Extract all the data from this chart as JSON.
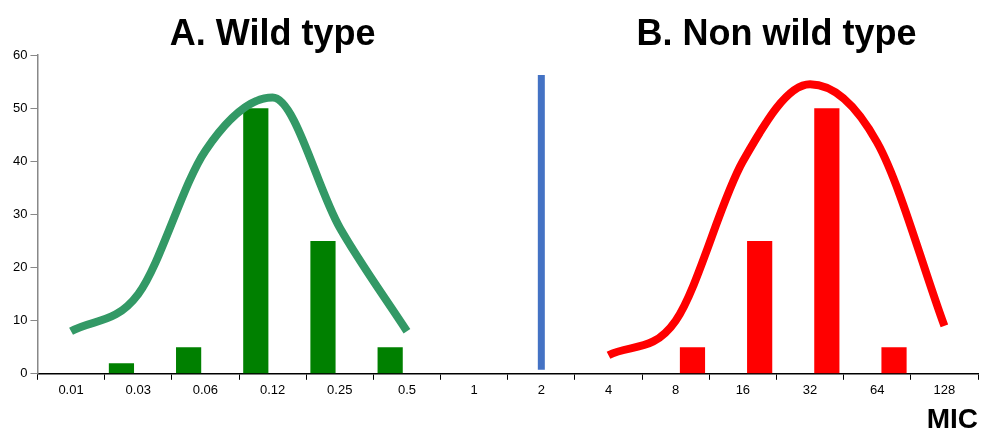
{
  "chart_data": {
    "type": "bar",
    "xlabel": "MIC",
    "annotations": [
      "A. Wild type",
      "B. Non wild type"
    ],
    "categories": [
      "0.01",
      "0.03",
      "0.06",
      "0.12",
      "0.25",
      "0.5",
      "1",
      "2",
      "4",
      "8",
      "16",
      "32",
      "64",
      "128"
    ],
    "series": [
      {
        "color": "#008000",
        "values": [
          null,
          2,
          5,
          50,
          25,
          5,
          null,
          null,
          null,
          null,
          null,
          null,
          null,
          null
        ]
      },
      {
        "color": "#ff0000",
        "values": [
          null,
          null,
          null,
          null,
          null,
          null,
          null,
          null,
          null,
          5,
          25,
          50,
          5,
          null
        ]
      },
      {
        "type": "line",
        "color": "#339966",
        "values": [
          8,
          15,
          42,
          52,
          27.5,
          8,
          null,
          null,
          null,
          null,
          null,
          null,
          null,
          null
        ]
      },
      {
        "type": "line",
        "color": "#ff0000",
        "values": [
          null,
          null,
          null,
          null,
          null,
          null,
          null,
          null,
          3.5,
          10,
          40,
          54.5,
          43.5,
          9
        ]
      }
    ],
    "ref_lines": [
      {
        "axis": "x",
        "value": "2",
        "color": "#4472c4"
      }
    ],
    "ylim": [
      0,
      60
    ],
    "yticks": [
      0,
      10,
      20,
      30,
      40,
      50,
      60
    ],
    "legend": false,
    "grid": false
  }
}
